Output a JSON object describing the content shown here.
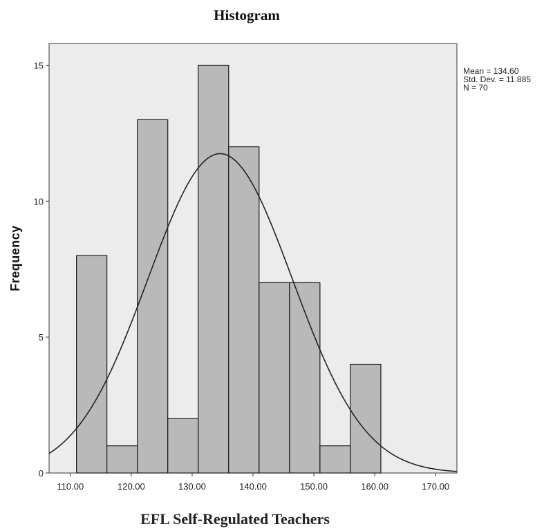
{
  "chart_data": {
    "type": "bar",
    "title": "Histogram",
    "xlabel": "EFL Self-Regulated Teachers",
    "ylabel": "Frequency",
    "bins": [
      {
        "start": 111.0,
        "end": 116.0,
        "count": 8
      },
      {
        "start": 116.0,
        "end": 121.0,
        "count": 1
      },
      {
        "start": 121.0,
        "end": 126.0,
        "count": 13
      },
      {
        "start": 126.0,
        "end": 131.0,
        "count": 2
      },
      {
        "start": 131.0,
        "end": 136.0,
        "count": 15
      },
      {
        "start": 136.0,
        "end": 141.0,
        "count": 12
      },
      {
        "start": 141.0,
        "end": 146.0,
        "count": 7
      },
      {
        "start": 146.0,
        "end": 151.0,
        "count": 7
      },
      {
        "start": 151.0,
        "end": 156.0,
        "count": 1
      },
      {
        "start": 156.0,
        "end": 161.0,
        "count": 4
      }
    ],
    "xlim": [
      106.5,
      173.5
    ],
    "ylim": [
      0,
      15.8
    ],
    "xticks": [
      "110.00",
      "120.00",
      "130.00",
      "140.00",
      "150.00",
      "160.00",
      "170.00"
    ],
    "xtick_values": [
      110,
      120,
      130,
      140,
      150,
      160,
      170
    ],
    "yticks": [
      "0",
      "5",
      "10",
      "15"
    ],
    "ytick_values": [
      0,
      5,
      10,
      15
    ],
    "normal_curve": {
      "mean": 134.6,
      "sd": 11.885,
      "n": 70,
      "bin_width": 5
    },
    "stats": [
      "Mean = 134.60",
      "Std. Dev. = 11.885",
      "N = 70"
    ],
    "colors": {
      "plot_background": "#ececec",
      "bar_fill": "#b9b9b9",
      "bar_stroke": "#1a1a1a",
      "curve": "#222222"
    },
    "grid": false
  }
}
